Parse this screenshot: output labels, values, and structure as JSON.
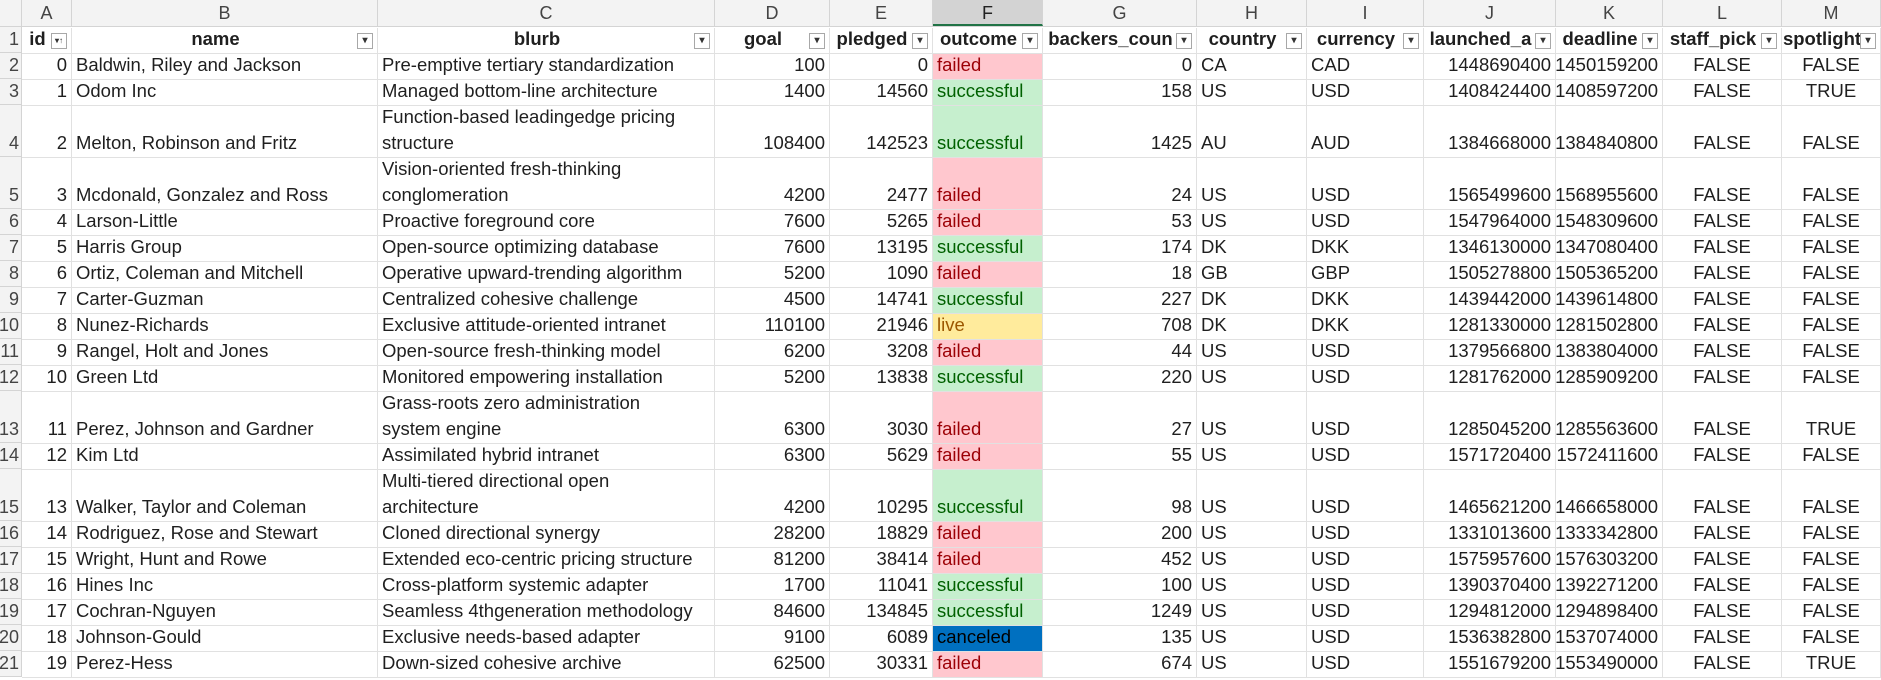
{
  "spreadsheet": {
    "column_letters": [
      "A",
      "B",
      "C",
      "D",
      "E",
      "F",
      "G",
      "H",
      "I",
      "J",
      "K",
      "L",
      "M"
    ],
    "active_column": "F",
    "header_row_number": "1",
    "headers": [
      "id",
      "name",
      "blurb",
      "goal",
      "pledged",
      "outcome",
      "backers_count",
      "country",
      "currency",
      "launched_at",
      "deadline",
      "staff_pick",
      "spotlight"
    ],
    "header_display": [
      "id",
      "name",
      "blurb",
      "goal",
      "pledged",
      "outcome",
      "backers_coun",
      "country",
      "currency",
      "launched_a",
      "deadline",
      "staff_pick",
      "spotlight"
    ],
    "sort_indicator_column": "id",
    "outcome_colors": {
      "failed": {
        "bg": "#ffc7ce",
        "fg": "#9c0006"
      },
      "successful": {
        "bg": "#c6efce",
        "fg": "#006100"
      },
      "live": {
        "bg": "#ffeb9c",
        "fg": "#9c5700"
      },
      "canceled": {
        "bg": "#0070c0",
        "fg": "#000000"
      }
    },
    "rows": [
      {
        "row_number": "2",
        "id": "0",
        "name": "Baldwin, Riley and Jackson",
        "blurb": [
          "Pre-emptive tertiary standardization"
        ],
        "goal": "100",
        "pledged": "0",
        "outcome": "failed",
        "backers_count": "0",
        "country": "CA",
        "currency": "CAD",
        "launched_at": "1448690400",
        "deadline": "1450159200",
        "staff_pick": "FALSE",
        "spotlight": "FALSE"
      },
      {
        "row_number": "3",
        "id": "1",
        "name": "Odom Inc",
        "blurb": [
          "Managed bottom-line architecture"
        ],
        "goal": "1400",
        "pledged": "14560",
        "outcome": "successful",
        "backers_count": "158",
        "country": "US",
        "currency": "USD",
        "launched_at": "1408424400",
        "deadline": "1408597200",
        "staff_pick": "FALSE",
        "spotlight": "TRUE"
      },
      {
        "row_number": "4",
        "id": "2",
        "name": "Melton, Robinson and Fritz",
        "blurb": [
          "Function-based leadingedge pricing",
          "structure"
        ],
        "goal": "108400",
        "pledged": "142523",
        "outcome": "successful",
        "backers_count": "1425",
        "country": "AU",
        "currency": "AUD",
        "launched_at": "1384668000",
        "deadline": "1384840800",
        "staff_pick": "FALSE",
        "spotlight": "FALSE"
      },
      {
        "row_number": "5",
        "id": "3",
        "name": "Mcdonald, Gonzalez and Ross",
        "blurb": [
          "Vision-oriented fresh-thinking",
          "conglomeration"
        ],
        "goal": "4200",
        "pledged": "2477",
        "outcome": "failed",
        "backers_count": "24",
        "country": "US",
        "currency": "USD",
        "launched_at": "1565499600",
        "deadline": "1568955600",
        "staff_pick": "FALSE",
        "spotlight": "FALSE"
      },
      {
        "row_number": "6",
        "id": "4",
        "name": "Larson-Little",
        "blurb": [
          "Proactive foreground core"
        ],
        "goal": "7600",
        "pledged": "5265",
        "outcome": "failed",
        "backers_count": "53",
        "country": "US",
        "currency": "USD",
        "launched_at": "1547964000",
        "deadline": "1548309600",
        "staff_pick": "FALSE",
        "spotlight": "FALSE"
      },
      {
        "row_number": "7",
        "id": "5",
        "name": "Harris Group",
        "blurb": [
          "Open-source optimizing database"
        ],
        "goal": "7600",
        "pledged": "13195",
        "outcome": "successful",
        "backers_count": "174",
        "country": "DK",
        "currency": "DKK",
        "launched_at": "1346130000",
        "deadline": "1347080400",
        "staff_pick": "FALSE",
        "spotlight": "FALSE"
      },
      {
        "row_number": "8",
        "id": "6",
        "name": "Ortiz, Coleman and Mitchell",
        "blurb": [
          "Operative upward-trending algorithm"
        ],
        "goal": "5200",
        "pledged": "1090",
        "outcome": "failed",
        "backers_count": "18",
        "country": "GB",
        "currency": "GBP",
        "launched_at": "1505278800",
        "deadline": "1505365200",
        "staff_pick": "FALSE",
        "spotlight": "FALSE"
      },
      {
        "row_number": "9",
        "id": "7",
        "name": "Carter-Guzman",
        "blurb": [
          "Centralized cohesive challenge"
        ],
        "goal": "4500",
        "pledged": "14741",
        "outcome": "successful",
        "backers_count": "227",
        "country": "DK",
        "currency": "DKK",
        "launched_at": "1439442000",
        "deadline": "1439614800",
        "staff_pick": "FALSE",
        "spotlight": "FALSE"
      },
      {
        "row_number": "10",
        "id": "8",
        "name": "Nunez-Richards",
        "blurb": [
          "Exclusive attitude-oriented intranet"
        ],
        "goal": "110100",
        "pledged": "21946",
        "outcome": "live",
        "backers_count": "708",
        "country": "DK",
        "currency": "DKK",
        "launched_at": "1281330000",
        "deadline": "1281502800",
        "staff_pick": "FALSE",
        "spotlight": "FALSE"
      },
      {
        "row_number": "11",
        "id": "9",
        "name": "Rangel, Holt and Jones",
        "blurb": [
          "Open-source fresh-thinking model"
        ],
        "goal": "6200",
        "pledged": "3208",
        "outcome": "failed",
        "backers_count": "44",
        "country": "US",
        "currency": "USD",
        "launched_at": "1379566800",
        "deadline": "1383804000",
        "staff_pick": "FALSE",
        "spotlight": "FALSE"
      },
      {
        "row_number": "12",
        "id": "10",
        "name": "Green Ltd",
        "blurb": [
          "Monitored empowering installation"
        ],
        "goal": "5200",
        "pledged": "13838",
        "outcome": "successful",
        "backers_count": "220",
        "country": "US",
        "currency": "USD",
        "launched_at": "1281762000",
        "deadline": "1285909200",
        "staff_pick": "FALSE",
        "spotlight": "FALSE"
      },
      {
        "row_number": "13",
        "id": "11",
        "name": "Perez, Johnson and Gardner",
        "blurb": [
          "Grass-roots zero administration",
          "system engine"
        ],
        "goal": "6300",
        "pledged": "3030",
        "outcome": "failed",
        "backers_count": "27",
        "country": "US",
        "currency": "USD",
        "launched_at": "1285045200",
        "deadline": "1285563600",
        "staff_pick": "FALSE",
        "spotlight": "TRUE"
      },
      {
        "row_number": "14",
        "id": "12",
        "name": "Kim Ltd",
        "blurb": [
          "Assimilated hybrid intranet"
        ],
        "goal": "6300",
        "pledged": "5629",
        "outcome": "failed",
        "backers_count": "55",
        "country": "US",
        "currency": "USD",
        "launched_at": "1571720400",
        "deadline": "1572411600",
        "staff_pick": "FALSE",
        "spotlight": "FALSE"
      },
      {
        "row_number": "15",
        "id": "13",
        "name": "Walker, Taylor and Coleman",
        "blurb": [
          "Multi-tiered directional open",
          "architecture"
        ],
        "goal": "4200",
        "pledged": "10295",
        "outcome": "successful",
        "backers_count": "98",
        "country": "US",
        "currency": "USD",
        "launched_at": "1465621200",
        "deadline": "1466658000",
        "staff_pick": "FALSE",
        "spotlight": "FALSE"
      },
      {
        "row_number": "16",
        "id": "14",
        "name": "Rodriguez, Rose and Stewart",
        "blurb": [
          "Cloned directional synergy"
        ],
        "goal": "28200",
        "pledged": "18829",
        "outcome": "failed",
        "backers_count": "200",
        "country": "US",
        "currency": "USD",
        "launched_at": "1331013600",
        "deadline": "1333342800",
        "staff_pick": "FALSE",
        "spotlight": "FALSE"
      },
      {
        "row_number": "17",
        "id": "15",
        "name": "Wright, Hunt and Rowe",
        "blurb": [
          "Extended eco-centric pricing structure"
        ],
        "goal": "81200",
        "pledged": "38414",
        "outcome": "failed",
        "backers_count": "452",
        "country": "US",
        "currency": "USD",
        "launched_at": "1575957600",
        "deadline": "1576303200",
        "staff_pick": "FALSE",
        "spotlight": "FALSE"
      },
      {
        "row_number": "18",
        "id": "16",
        "name": "Hines Inc",
        "blurb": [
          "Cross-platform systemic adapter"
        ],
        "goal": "1700",
        "pledged": "11041",
        "outcome": "successful",
        "backers_count": "100",
        "country": "US",
        "currency": "USD",
        "launched_at": "1390370400",
        "deadline": "1392271200",
        "staff_pick": "FALSE",
        "spotlight": "FALSE"
      },
      {
        "row_number": "19",
        "id": "17",
        "name": "Cochran-Nguyen",
        "blurb": [
          "Seamless 4thgeneration methodology"
        ],
        "goal": "84600",
        "pledged": "134845",
        "outcome": "successful",
        "backers_count": "1249",
        "country": "US",
        "currency": "USD",
        "launched_at": "1294812000",
        "deadline": "1294898400",
        "staff_pick": "FALSE",
        "spotlight": "FALSE"
      },
      {
        "row_number": "20",
        "id": "18",
        "name": "Johnson-Gould",
        "blurb": [
          "Exclusive needs-based adapter"
        ],
        "goal": "9100",
        "pledged": "6089",
        "outcome": "canceled",
        "backers_count": "135",
        "country": "US",
        "currency": "USD",
        "launched_at": "1536382800",
        "deadline": "1537074000",
        "staff_pick": "FALSE",
        "spotlight": "FALSE"
      },
      {
        "row_number": "21",
        "id": "19",
        "name": "Perez-Hess",
        "blurb": [
          "Down-sized cohesive archive"
        ],
        "goal": "62500",
        "pledged": "30331",
        "outcome": "failed",
        "backers_count": "674",
        "country": "US",
        "currency": "USD",
        "launched_at": "1551679200",
        "deadline": "1553490000",
        "staff_pick": "FALSE",
        "spotlight": "TRUE"
      }
    ]
  }
}
